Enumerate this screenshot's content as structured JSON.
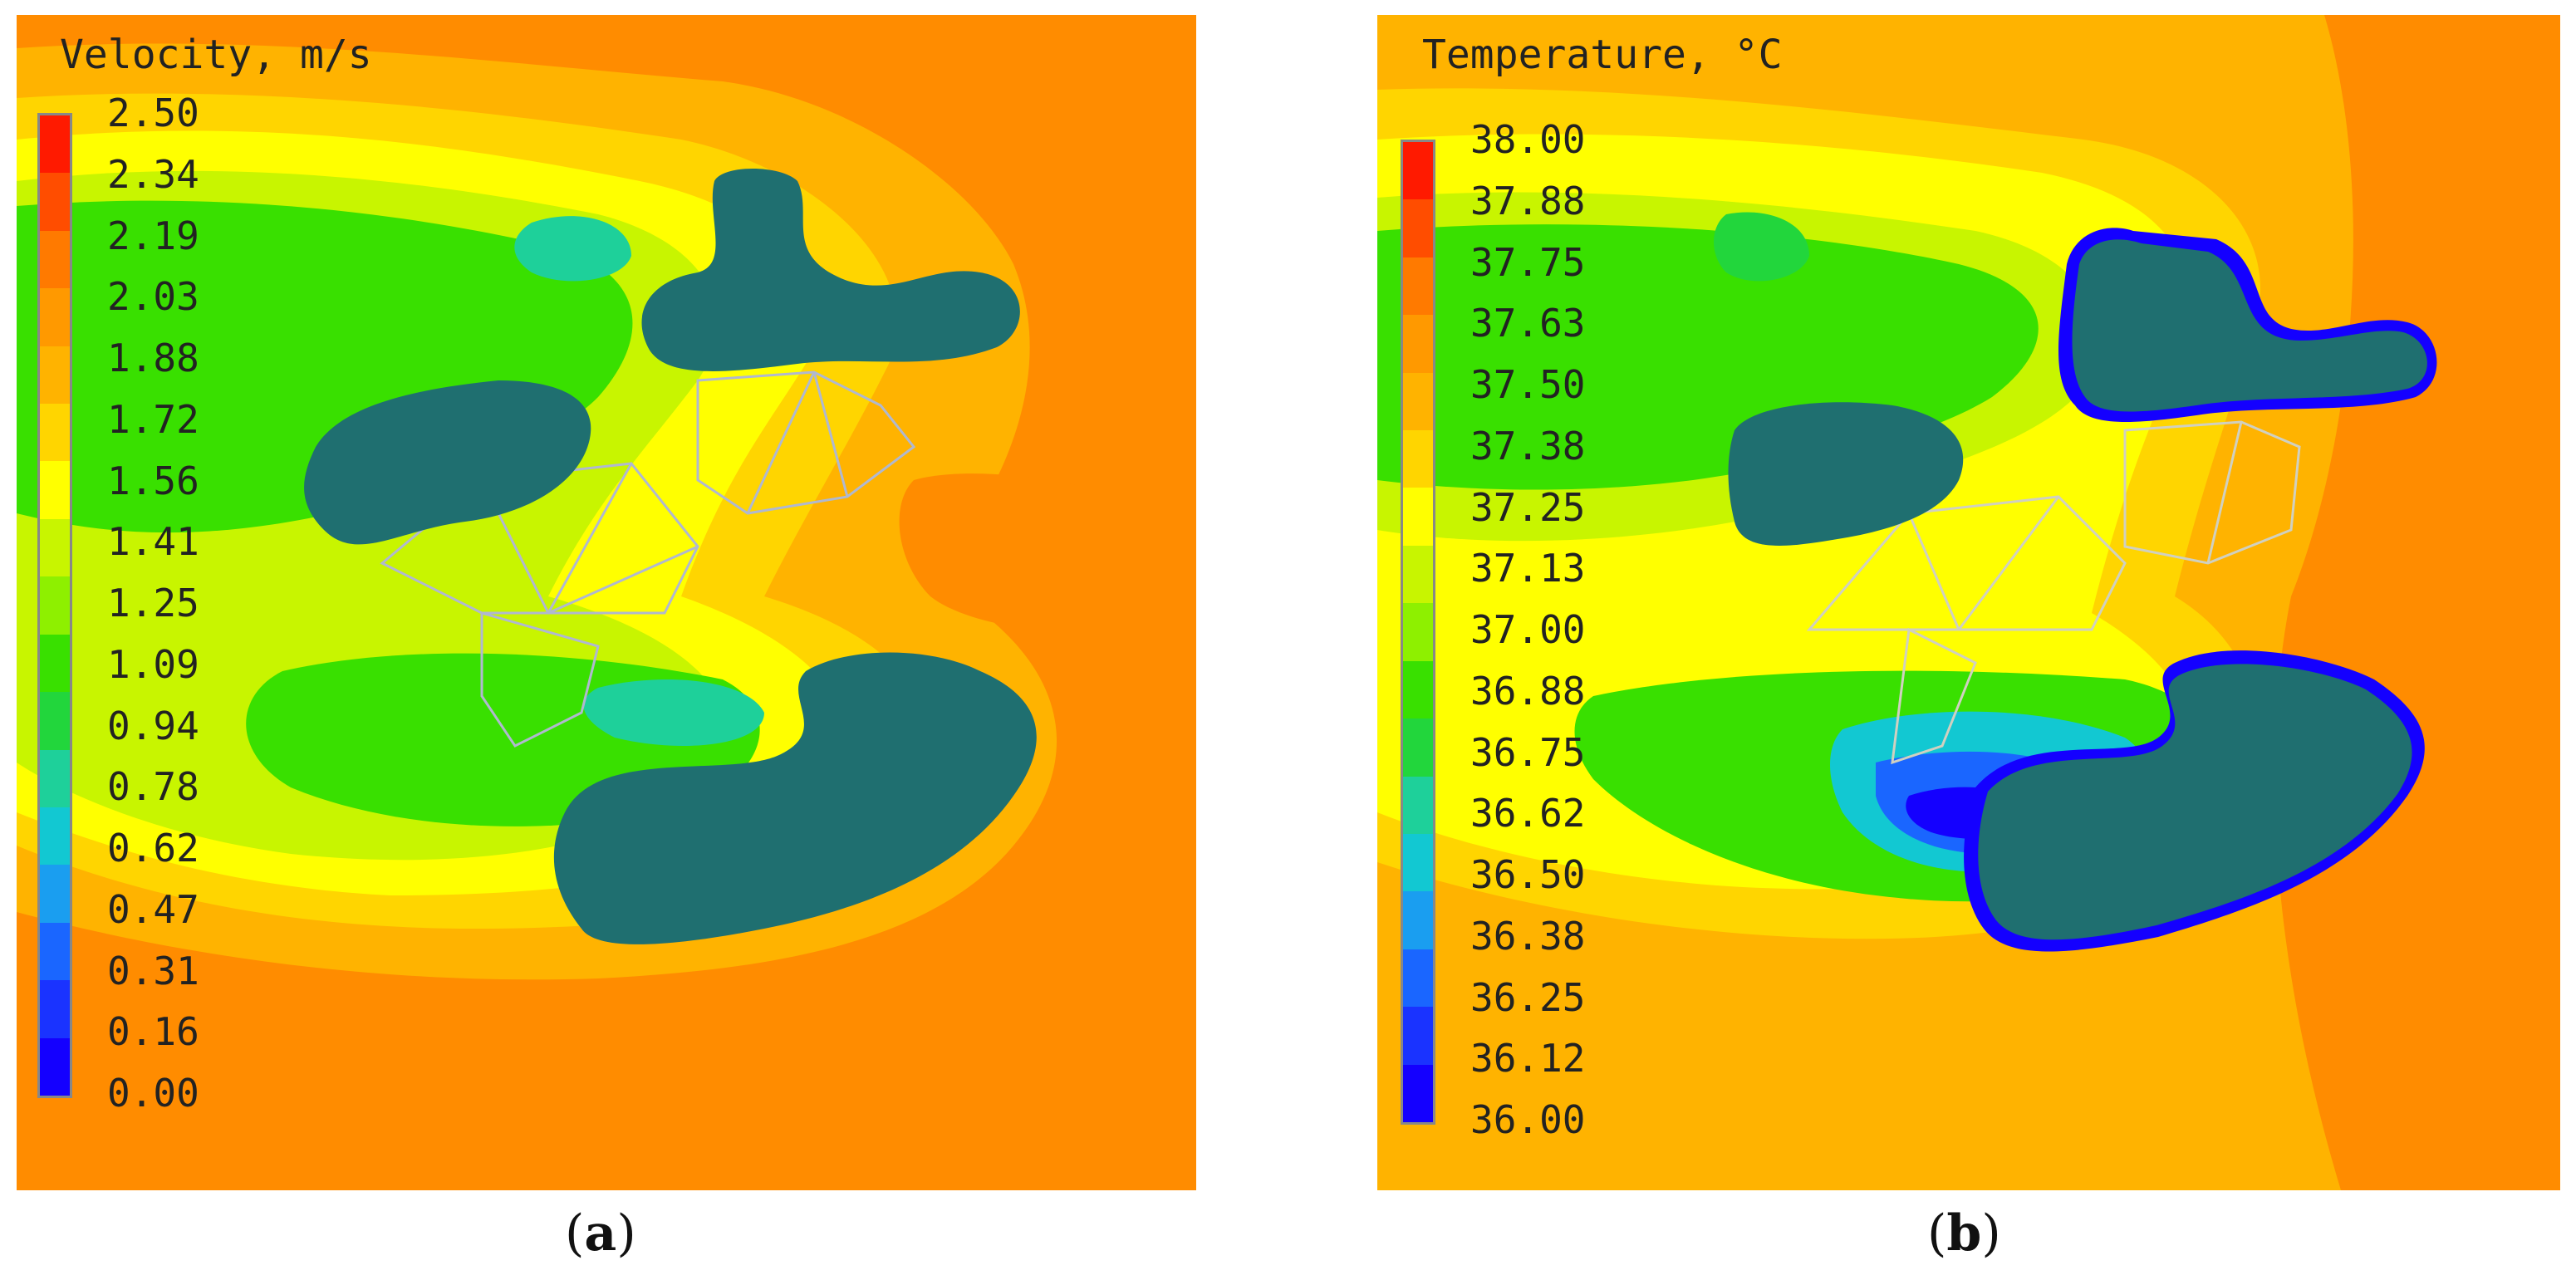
{
  "panels": [
    {
      "id": "a",
      "caption_letter": "a",
      "legend_title": "Velocity, m/s",
      "ticks": [
        "2.50",
        "2.34",
        "2.19",
        "2.03",
        "1.88",
        "1.72",
        "1.56",
        "1.41",
        "1.25",
        "1.09",
        "0.94",
        "0.78",
        "0.62",
        "0.47",
        "0.31",
        "0.16",
        "0.00"
      ],
      "colors": [
        "#ff1a00",
        "#ff4d00",
        "#ff7a00",
        "#ff9900",
        "#ffb300",
        "#ffd500",
        "#ffff00",
        "#c8f500",
        "#8ef000",
        "#39e000",
        "#22d63c",
        "#1ed09a",
        "#12c8d2",
        "#1a9ef0",
        "#1a66ff",
        "#1a33ff",
        "#1400ff"
      ]
    },
    {
      "id": "b",
      "caption_letter": "b",
      "legend_title": "Temperature, °C",
      "ticks": [
        "38.00",
        "37.88",
        "37.75",
        "37.63",
        "37.50",
        "37.38",
        "37.25",
        "37.13",
        "37.00",
        "36.88",
        "36.75",
        "36.62",
        "36.50",
        "36.38",
        "36.25",
        "36.12",
        "36.00"
      ],
      "colors": [
        "#ff1a00",
        "#ff4d00",
        "#ff7a00",
        "#ff9900",
        "#ffb300",
        "#ffd500",
        "#ffff00",
        "#c8f500",
        "#8ef000",
        "#39e000",
        "#22d63c",
        "#1ed09a",
        "#12c8d2",
        "#1a9ef0",
        "#1a66ff",
        "#1a33ff",
        "#1400ff"
      ]
    }
  ],
  "chart_data": [
    {
      "type": "heatmap",
      "title": "",
      "colorbar": {
        "label": "Velocity, m/s",
        "range": [
          0.0,
          2.5
        ],
        "ticks": [
          2.5,
          2.34,
          2.19,
          2.03,
          1.88,
          1.72,
          1.56,
          1.41,
          1.25,
          1.09,
          0.94,
          0.78,
          0.62,
          0.47,
          0.31,
          0.16,
          0.0
        ]
      }
    },
    {
      "type": "heatmap",
      "title": "",
      "colorbar": {
        "label": "Temperature, °C",
        "range": [
          36.0,
          38.0
        ],
        "ticks": [
          38.0,
          37.88,
          37.75,
          37.63,
          37.5,
          37.38,
          37.25,
          37.13,
          37.0,
          36.88,
          36.75,
          36.62,
          36.5,
          36.38,
          36.25,
          36.12,
          36.0
        ]
      }
    }
  ]
}
